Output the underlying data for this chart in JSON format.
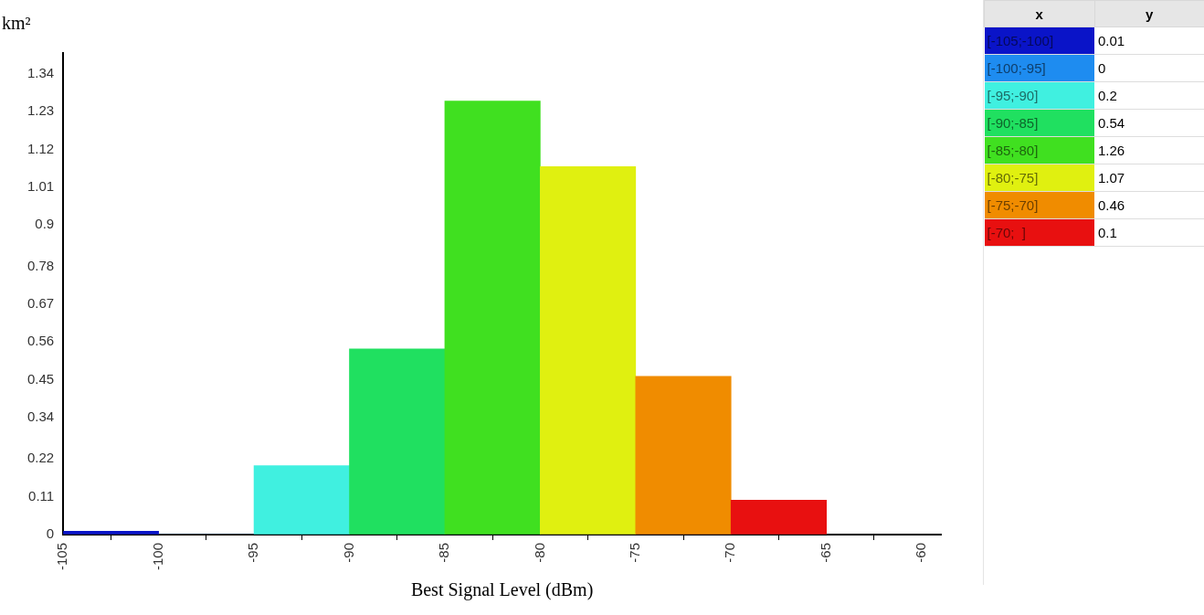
{
  "chart_data": [
    {
      "type": "histogram",
      "xlabel": "Best Signal Level (dBm)",
      "ylabel": "km²",
      "bins": [
        -105,
        -100,
        -95,
        -90,
        -85,
        -80,
        -75,
        -70,
        -65
      ],
      "values": [
        0.01,
        0,
        0.2,
        0.54,
        1.26,
        1.07,
        0.46,
        0.1
      ],
      "colors": [
        "#0a14c8",
        "#1e8cf0",
        "#40f0e0",
        "#20e060",
        "#40e020",
        "#e0f010",
        "#f08c00",
        "#e81010"
      ],
      "xlim": [
        -105,
        -59
      ],
      "xticks": [
        -105,
        -100,
        -95,
        -90,
        -85,
        -80,
        -75,
        -70,
        -65,
        -60
      ],
      "ylim": [
        0,
        1.4
      ],
      "yticks": [
        0,
        0.11,
        0.22,
        0.34,
        0.45,
        0.56,
        0.67,
        0.78,
        0.9,
        1.01,
        1.12,
        1.23,
        1.34
      ],
      "grid": false,
      "legend": false
    },
    {
      "type": "other",
      "xlabel": "x",
      "ylabel": "y",
      "categories": [
        "[-105;-100]",
        "[-100;-95]",
        "[-95;-90]",
        "[-90;-85]",
        "[-85;-80]",
        "[-80;-75]",
        "[-75;-70]",
        "[-70;  ]"
      ],
      "values": [
        0.01,
        0,
        0.2,
        0.54,
        1.26,
        1.07,
        0.46,
        0.1
      ],
      "value_labels": [
        "0.01",
        "0",
        "0.2",
        "0.54",
        "1.26",
        "1.07",
        "0.46",
        "0.1"
      ],
      "data_labels": true,
      "colors": [
        "#0a14c8",
        "#1e8cf0",
        "#40f0e0",
        "#20e060",
        "#40e020",
        "#e0f010",
        "#f08c00",
        "#e81010"
      ]
    }
  ]
}
